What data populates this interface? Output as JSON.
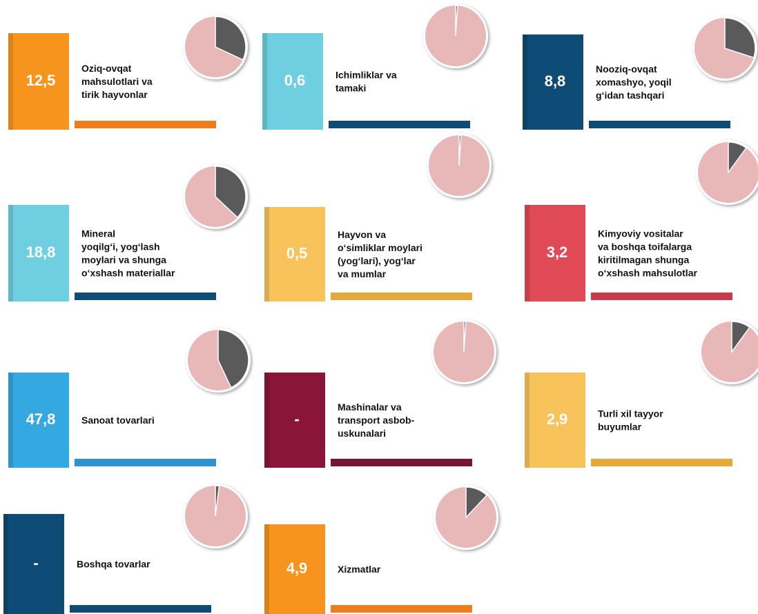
{
  "chart_data": {
    "type": "tiles",
    "tiles": [
      {
        "value": "12,5",
        "label": [
          "Oziq-ovqat",
          "mahsulotlari va",
          "tirik hayvonlar"
        ],
        "share": 32,
        "color": "#f7941d",
        "bar_color": "#f07d1b"
      },
      {
        "value": "0,6",
        "label": [
          "Ichimliklar va",
          "tamaki"
        ],
        "share": 1,
        "color": "#6dcfe0",
        "bar_color": "#0f4c75"
      },
      {
        "value": "8,8",
        "label": [
          "Nooziq-ovqat",
          "xomashyo, yoqil",
          "g‘idan tashqari"
        ],
        "share": 30,
        "color": "#0f4c75",
        "bar_color": "#0f4c75"
      },
      {
        "value": "18,8",
        "label": [
          "Mineral",
          "yoqilg‘i, yog‘lash",
          "moylari va shunga",
          "o‘xshash materiallar"
        ],
        "share": 37,
        "color": "#6dcfe0",
        "bar_color": "#0f4c75"
      },
      {
        "value": "0,5",
        "label": [
          "Hayvon va",
          "o‘simliklar moylari",
          "(yog‘lari), yog‘lar",
          "va mumlar"
        ],
        "share": 1,
        "color": "#f9c35c",
        "bar_color": "#e5a93a"
      },
      {
        "value": "3,2",
        "label": [
          "Kimyoviy vositalar",
          "va boshqa toifalarga",
          "kiritilmagan shunga",
          "o‘xshash mahsulotlar"
        ],
        "share": 10,
        "color": "#e04a57",
        "bar_color": "#c83a4a"
      },
      {
        "value": "47,8",
        "label": [
          "Sanoat tovarlari"
        ],
        "share": 43,
        "color": "#34a9e1",
        "bar_color": "#2e93d1"
      },
      {
        "value": "-",
        "label": [
          "Mashinalar va",
          "transport asbob-",
          "uskunalari"
        ],
        "share": 1,
        "color": "#8b1538",
        "bar_color": "#7a1432"
      },
      {
        "value": "2,9",
        "label": [
          "Turli xil tayyor",
          "buyumlar"
        ],
        "share": 10,
        "color": "#f9c35c",
        "bar_color": "#e5a93a"
      },
      {
        "value": "-",
        "label": [
          "Boshqa tovarlar"
        ],
        "share": 2,
        "color": "#0f4c75",
        "bar_color": "#0f4c75"
      },
      {
        "value": "4,9",
        "label": [
          "Xizmatlar"
        ],
        "share": 12,
        "color": "#f7941d",
        "bar_color": "#f07d1b"
      }
    ]
  }
}
